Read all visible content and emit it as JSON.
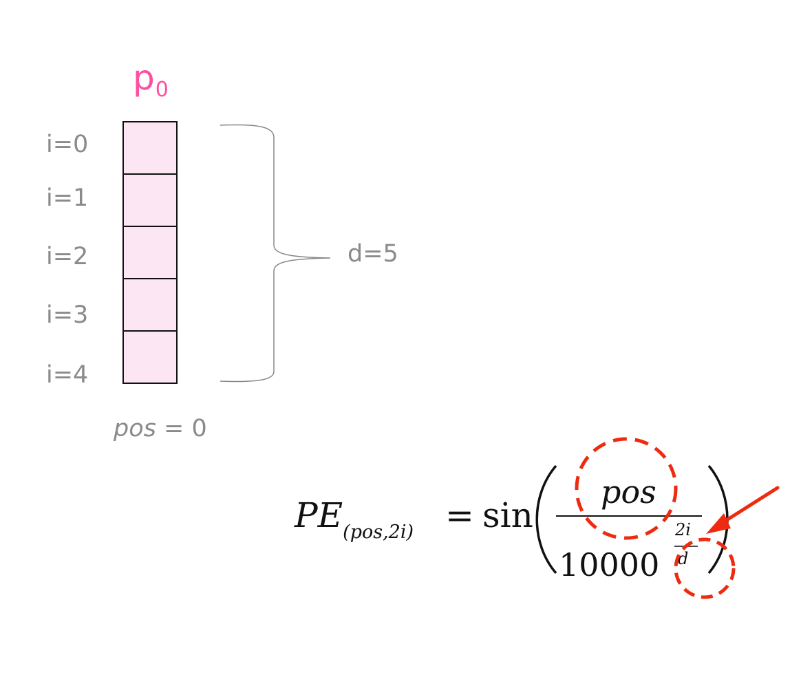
{
  "vector": {
    "name": "p",
    "subscript": "0",
    "index_labels": [
      "i=0",
      "i=1",
      "i=2",
      "i=3",
      "i=4"
    ],
    "dimension_label": "d=5",
    "position_label": {
      "var": "pos",
      "rest": " = 0"
    }
  },
  "formula": {
    "lhs": "PE",
    "lhs_subscript": "(pos,2i)",
    "equals": "=",
    "function": "sin",
    "numerator": "pos",
    "denominator_base": "10000",
    "exponent_numerator": "2i",
    "exponent_denominator": "d"
  },
  "colors": {
    "vector_title": "#ff4fa0",
    "cell_fill": "#fde6f3",
    "label_gray": "#8a8a8a",
    "annotation_red": "#ee2b10"
  },
  "icons": {
    "annotation_circles": "dashed-circle-icon",
    "annotation_arrow": "arrow-icon"
  }
}
